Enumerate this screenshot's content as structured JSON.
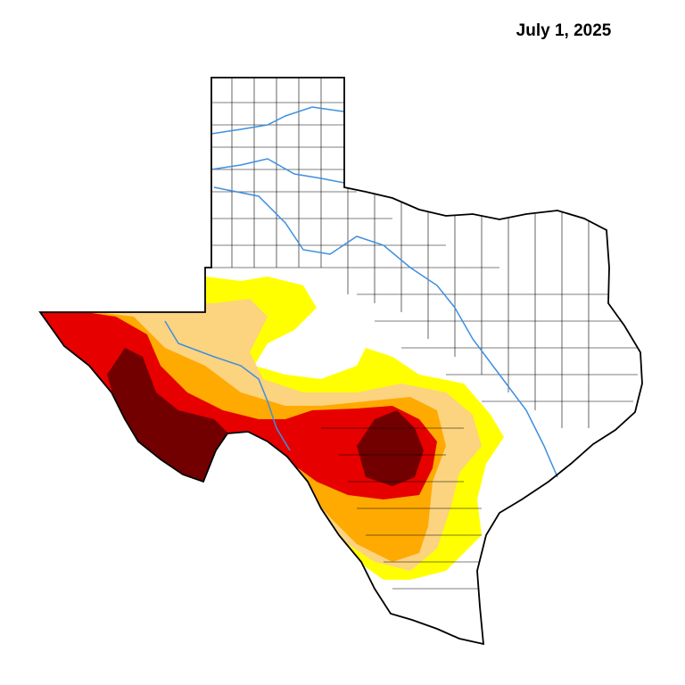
{
  "header": {
    "date": "July 1, 2025"
  }
}
